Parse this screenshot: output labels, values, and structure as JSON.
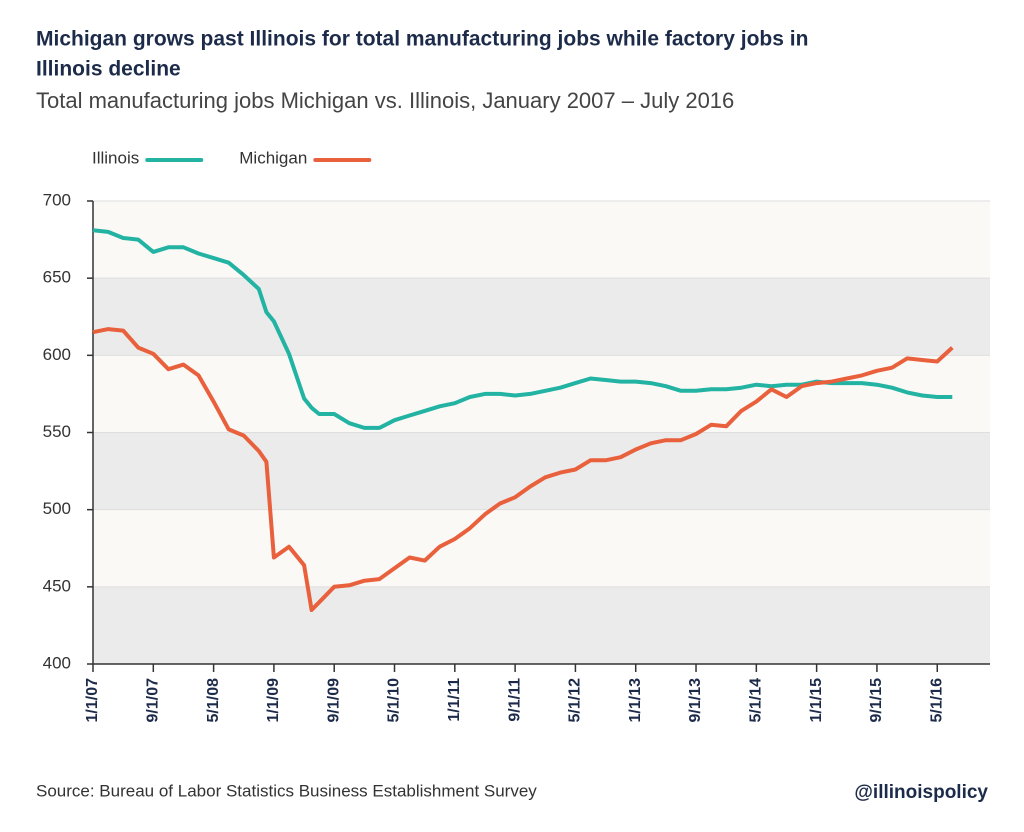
{
  "chart_data": {
    "type": "line",
    "title": "Michigan grows past Illinois for total manufacturing jobs while factory jobs in Illinois decline",
    "title_lines": [
      "Michigan grows past Illinois for total manufacturing jobs while factory jobs in",
      "Illinois decline"
    ],
    "subtitle": "Total manufacturing jobs Michigan vs. Illinois, January 2007 – July 2016",
    "source": "Source: Bureau of Labor Statistics Business Establishment Survey",
    "credit": "@illinoispolicy",
    "x": [
      "2007-01-01",
      "2007-03-01",
      "2007-05-01",
      "2007-07-01",
      "2007-09-01",
      "2007-11-01",
      "2008-01-01",
      "2008-03-01",
      "2008-05-01",
      "2008-07-01",
      "2008-09-01",
      "2008-11-01",
      "2008-12-01",
      "2009-01-01",
      "2009-03-01",
      "2009-05-01",
      "2009-06-01",
      "2009-07-01",
      "2009-09-01",
      "2009-11-01",
      "2010-01-01",
      "2010-03-01",
      "2010-05-01",
      "2010-07-01",
      "2010-09-01",
      "2010-11-01",
      "2011-01-01",
      "2011-03-01",
      "2011-05-01",
      "2011-07-01",
      "2011-09-01",
      "2011-11-01",
      "2012-01-01",
      "2012-03-01",
      "2012-05-01",
      "2012-07-01",
      "2012-09-01",
      "2012-11-01",
      "2013-01-01",
      "2013-03-01",
      "2013-05-01",
      "2013-07-01",
      "2013-09-01",
      "2013-11-01",
      "2014-01-01",
      "2014-03-01",
      "2014-05-01",
      "2014-07-01",
      "2014-09-01",
      "2014-11-01",
      "2015-01-01",
      "2015-03-01",
      "2015-05-01",
      "2015-07-01",
      "2015-09-01",
      "2015-11-01",
      "2016-01-01",
      "2016-03-01",
      "2016-05-01",
      "2016-07-01"
    ],
    "series": [
      {
        "name": "Illinois",
        "color": "#22b3a3",
        "values": [
          681,
          680,
          676,
          675,
          667,
          670,
          670,
          666,
          663,
          660,
          652,
          643,
          628,
          622,
          601,
          572,
          566,
          562,
          562,
          556,
          553,
          553,
          558,
          561,
          564,
          567,
          569,
          573,
          575,
          575,
          574,
          575,
          577,
          579,
          582,
          585,
          584,
          583,
          583,
          582,
          580,
          577,
          577,
          578,
          578,
          579,
          581,
          580,
          581,
          581,
          583,
          582,
          582,
          582,
          581,
          579,
          576,
          574,
          573,
          573
        ]
      },
      {
        "name": "Michigan",
        "color": "#e9603d",
        "values": [
          615,
          617,
          616,
          605,
          601,
          591,
          594,
          587,
          570,
          552,
          548,
          538,
          531,
          469,
          476,
          464,
          435,
          440,
          450,
          451,
          454,
          455,
          462,
          469,
          467,
          476,
          481,
          488,
          497,
          504,
          508,
          515,
          521,
          524,
          526,
          532,
          532,
          534,
          539,
          543,
          545,
          545,
          549,
          555,
          554,
          564,
          570,
          578,
          573,
          580,
          582,
          583,
          585,
          587,
          590,
          592,
          598,
          597,
          596,
          605
        ]
      }
    ],
    "xlim": [
      "2007-01-01",
      "2016-12-01"
    ],
    "xticks": [
      {
        "value": "2007-01-01",
        "label": "1/1/07"
      },
      {
        "value": "2007-09-01",
        "label": "9/1/07"
      },
      {
        "value": "2008-05-01",
        "label": "5/1/08"
      },
      {
        "value": "2009-01-01",
        "label": "1/1/09"
      },
      {
        "value": "2009-09-01",
        "label": "9/1/09"
      },
      {
        "value": "2010-05-01",
        "label": "5/1/10"
      },
      {
        "value": "2011-01-01",
        "label": "1/1/11"
      },
      {
        "value": "2011-09-01",
        "label": "9/1/11"
      },
      {
        "value": "2012-05-01",
        "label": "5/1/12"
      },
      {
        "value": "2013-01-01",
        "label": "1/1/13"
      },
      {
        "value": "2013-09-01",
        "label": "9/1/13"
      },
      {
        "value": "2014-05-01",
        "label": "5/1/14"
      },
      {
        "value": "2015-01-01",
        "label": "1/1/15"
      },
      {
        "value": "2015-09-01",
        "label": "9/1/15"
      },
      {
        "value": "2016-05-01",
        "label": "5/1/16"
      }
    ],
    "ylim": [
      400,
      700
    ],
    "yticks": [
      400,
      450,
      500,
      550,
      600,
      650,
      700
    ]
  }
}
